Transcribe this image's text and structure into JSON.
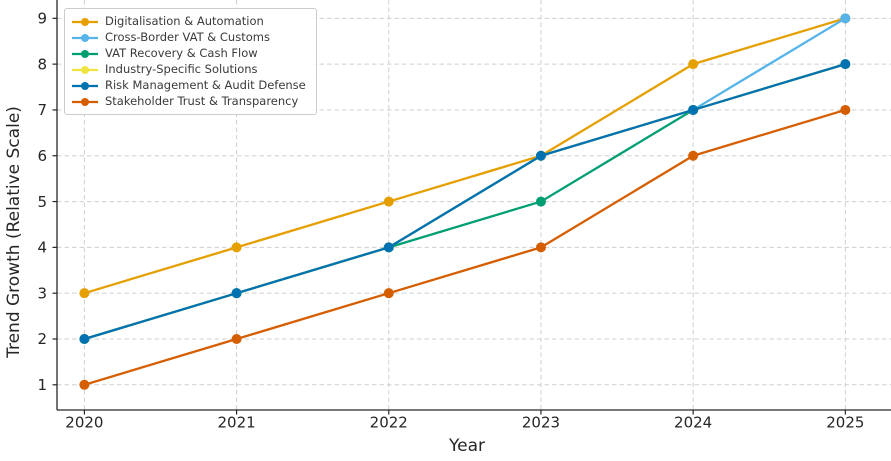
{
  "figure": {
    "background_color": "#ffffff",
    "text_color": "#262626",
    "grid_color": "#cfcfcf",
    "spine_color": "#262626"
  },
  "chart_data": {
    "type": "line",
    "title": "",
    "xlabel": "Year",
    "ylabel": "Trend Growth (Relative Scale)",
    "x": [
      2020,
      2021,
      2022,
      2023,
      2024,
      2025
    ],
    "xtick_labels": [
      "2020",
      "2021",
      "2022",
      "2023",
      "2024",
      "2025"
    ],
    "yticks": [
      1,
      2,
      3,
      4,
      5,
      6,
      7,
      8,
      9
    ],
    "xlim": [
      2019.82,
      2025.3
    ],
    "ylim": [
      0.45,
      9.4
    ],
    "grid": true,
    "grid_style": "dashed",
    "legend_position": "upper left",
    "marker": "circle",
    "series": [
      {
        "name": "Digitalisation & Automation",
        "color": "#E69F00",
        "values": [
          3,
          4,
          5,
          6,
          8,
          9
        ]
      },
      {
        "name": "Cross-Border VAT & Customs",
        "color": "#56B4E9",
        "values": [
          2,
          3,
          4,
          6,
          7,
          9
        ]
      },
      {
        "name": "VAT Recovery & Cash Flow",
        "color": "#009E73",
        "values": [
          2,
          3,
          4,
          5,
          7,
          8
        ]
      },
      {
        "name": "Industry-Specific Solutions",
        "color": "#F0E442",
        "values": [
          2,
          3,
          4,
          6,
          7,
          8
        ]
      },
      {
        "name": "Risk Management & Audit Defense",
        "color": "#0072B2",
        "values": [
          2,
          3,
          4,
          6,
          7,
          8
        ]
      },
      {
        "name": "Stakeholder Trust & Transparency",
        "color": "#D55E00",
        "values": [
          1,
          2,
          3,
          4,
          6,
          7
        ]
      }
    ]
  }
}
